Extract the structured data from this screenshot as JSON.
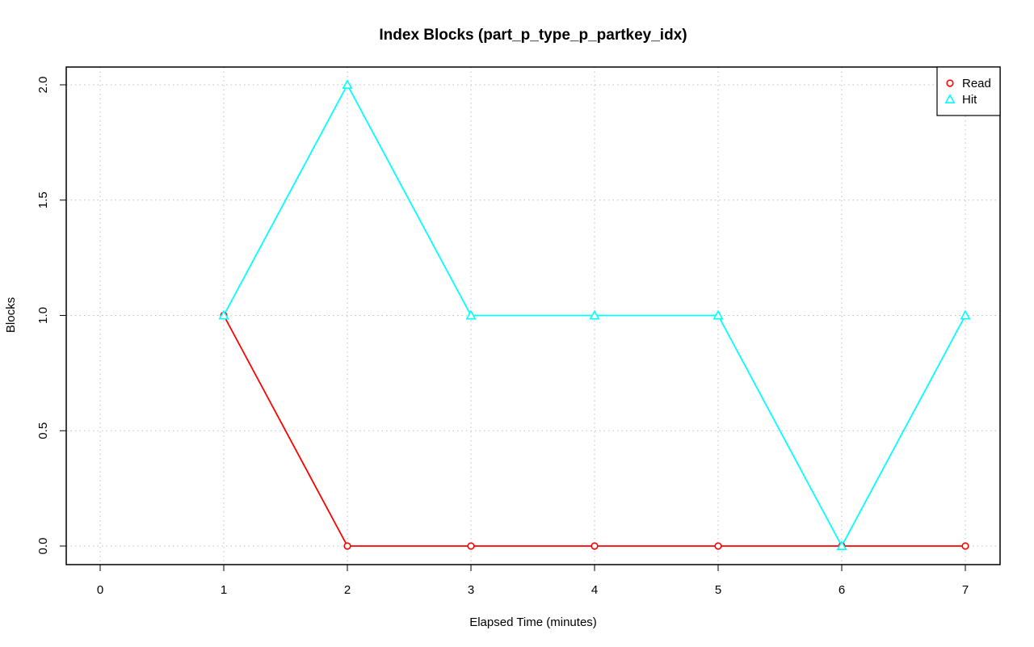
{
  "chart_data": {
    "type": "line",
    "title": "Index Blocks (part_p_type_p_partkey_idx)",
    "xlabel": "Elapsed Time (minutes)",
    "ylabel": "Blocks",
    "xlim": [
      0,
      7
    ],
    "ylim": [
      0,
      2
    ],
    "x_ticks": [
      "0",
      "1",
      "2",
      "3",
      "4",
      "5",
      "6",
      "7"
    ],
    "y_ticks": [
      "0.0",
      "0.5",
      "1.0",
      "1.5",
      "2.0"
    ],
    "grid": true,
    "legend_position": "top-right",
    "x": [
      1,
      2,
      3,
      4,
      5,
      6,
      7
    ],
    "series": [
      {
        "name": "Read",
        "color": "#ff0000",
        "marker": "circle",
        "values": [
          1,
          0,
          0,
          0,
          0,
          0,
          0
        ]
      },
      {
        "name": "Hit",
        "color": "#00ffff",
        "marker": "triangle",
        "values": [
          1,
          2,
          1,
          1,
          1,
          0,
          1
        ]
      }
    ]
  }
}
